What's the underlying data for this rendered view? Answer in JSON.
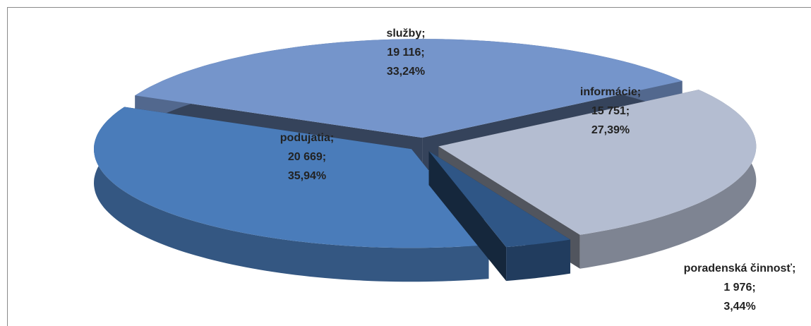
{
  "chart_data": {
    "type": "pie3d",
    "categories": [
      "služby",
      "informácie",
      "poradenská činnosť",
      "podujatia"
    ],
    "values": [
      19116,
      15751,
      1976,
      20669
    ],
    "value_labels": [
      "19 116",
      "15 751",
      "1 976",
      "20 669"
    ],
    "percentages": [
      33.24,
      27.39,
      3.44,
      35.94
    ],
    "percentage_labels": [
      "33,24%",
      "27,39%",
      "3,44%",
      "35,94%"
    ],
    "label_separator": ";",
    "colors": [
      "#7595cb",
      "#b4bdd1",
      "#2f5686",
      "#4a7cba"
    ]
  }
}
